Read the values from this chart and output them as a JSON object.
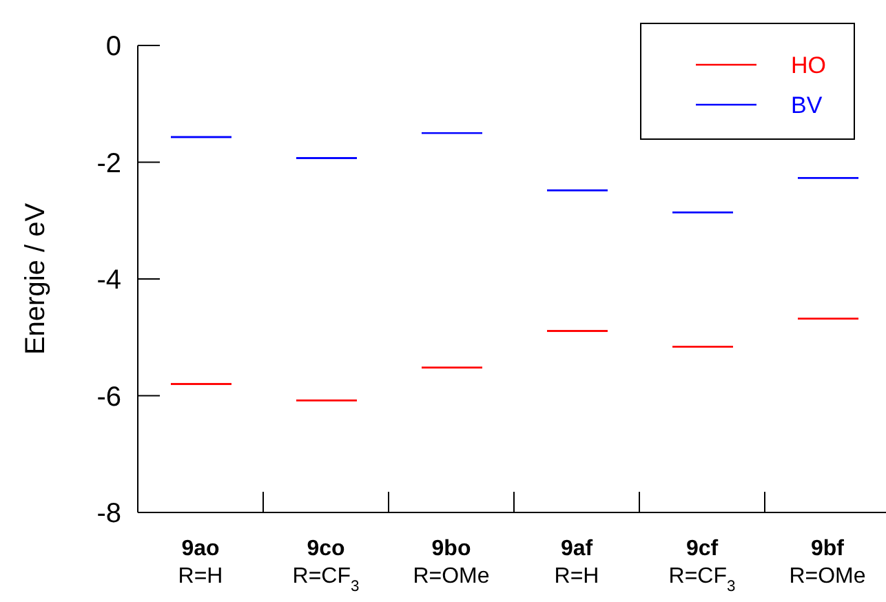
{
  "chart_data": {
    "type": "box",
    "ylabel": "Energie / eV",
    "categories": [
      "9ao\nR=H",
      "9co\nR=CF$_{3}$",
      "9bo\nR=OMe",
      "9af\nR=H",
      "9cf\nR=CF$_{3}$",
      "9bf\nR=OMe"
    ],
    "series": [
      {
        "name": "HO",
        "color": "#ff0000",
        "boxes": [
          {
            "low": -5.8,
            "q1": -5.8,
            "median": -5.8,
            "q3": -5.8,
            "high": -5.8
          },
          {
            "low": -6.08,
            "q1": -6.08,
            "median": -6.08,
            "q3": -6.08,
            "high": -6.08
          },
          {
            "low": -5.52,
            "q1": -5.52,
            "median": -5.52,
            "q3": -5.52,
            "high": -5.52
          },
          {
            "low": -4.89,
            "q1": -4.89,
            "median": -4.89,
            "q3": -4.89,
            "high": -4.89
          },
          {
            "low": -5.16,
            "q1": -5.16,
            "median": -5.16,
            "q3": -5.16,
            "high": -5.16
          },
          {
            "low": -4.68,
            "q1": -4.68,
            "median": -4.68,
            "q3": -4.68,
            "high": -4.68
          }
        ]
      },
      {
        "name": "BV",
        "color": "#0000ff",
        "boxes": [
          {
            "low": -1.57,
            "q1": -1.57,
            "median": -1.57,
            "q3": -1.57,
            "high": -1.57
          },
          {
            "low": -1.93,
            "q1": -1.93,
            "median": -1.93,
            "q3": -1.93,
            "high": -1.93
          },
          {
            "low": -1.5,
            "q1": -1.5,
            "median": -1.5,
            "q3": -1.5,
            "high": -1.5
          },
          {
            "low": -2.48,
            "q1": -2.48,
            "median": -2.48,
            "q3": -2.48,
            "high": -2.48
          },
          {
            "low": -2.86,
            "q1": -2.86,
            "median": -2.86,
            "q3": -2.86,
            "high": -2.86
          },
          {
            "low": -2.27,
            "q1": -2.27,
            "median": -2.27,
            "q3": -2.27,
            "high": -2.27
          }
        ]
      }
    ],
    "ylim": [
      -8,
      0
    ],
    "yticks": [
      -8,
      -6,
      -4,
      -2,
      0
    ],
    "grid": false,
    "legend": "top right"
  }
}
